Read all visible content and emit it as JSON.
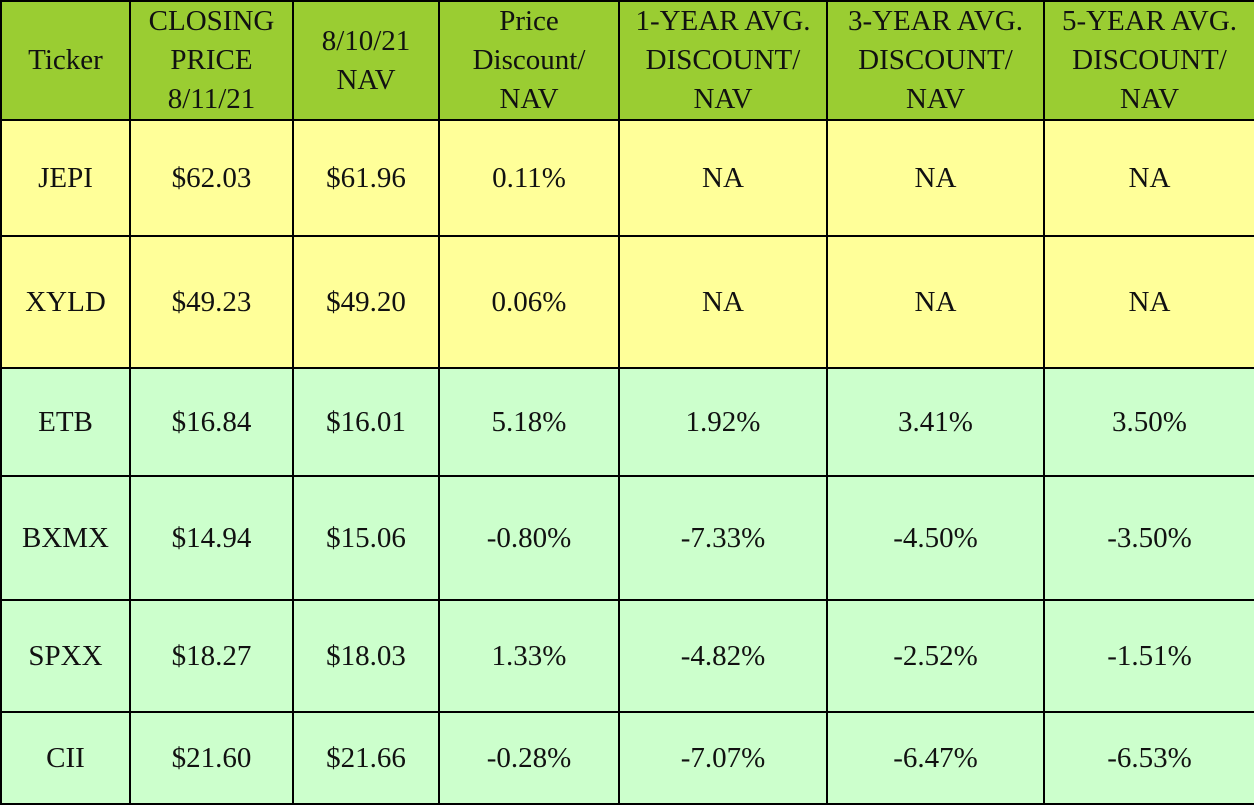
{
  "table": {
    "headers": [
      [
        "Ticker"
      ],
      [
        "CLOSING",
        "PRICE",
        "8/11/21"
      ],
      [
        "8/10/21",
        "NAV"
      ],
      [
        "Price",
        "Discount/",
        "NAV"
      ],
      [
        "1-YEAR AVG.",
        "DISCOUNT/",
        "NAV"
      ],
      [
        "3-YEAR AVG.",
        "DISCOUNT/",
        "NAV"
      ],
      [
        "5-YEAR AVG.",
        "DISCOUNT/",
        "NAV"
      ]
    ],
    "rows": [
      [
        "JEPI",
        "$62.03",
        "$61.96",
        "0.11%",
        "NA",
        "NA",
        "NA"
      ],
      [
        "XYLD",
        "$49.23",
        "$49.20",
        "0.06%",
        "NA",
        "NA",
        "NA"
      ],
      [
        "ETB",
        "$16.84",
        "$16.01",
        "5.18%",
        "1.92%",
        "3.41%",
        "3.50%"
      ],
      [
        "BXMX",
        "$14.94",
        "$15.06",
        "-0.80%",
        "-7.33%",
        "-4.50%",
        "-3.50%"
      ],
      [
        "SPXX",
        "$18.27",
        "$18.03",
        "1.33%",
        "-4.82%",
        "-2.52%",
        "-1.51%"
      ],
      [
        "CII",
        "$21.60",
        "$21.66",
        "-0.28%",
        "-7.07%",
        "-6.47%",
        "-6.53%"
      ]
    ]
  },
  "colors": {
    "header_bg": "#9acd32",
    "yellow_row_bg": "#ffff99",
    "green_row_bg": "#ccffcc",
    "border": "#000000"
  }
}
